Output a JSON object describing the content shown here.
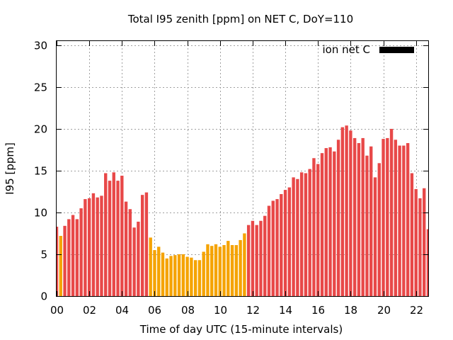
{
  "chart_data": {
    "type": "bar",
    "title": "Total I95 zenith [ppm] on NET C, DoY=110",
    "xlabel": "Time of day UTC (15-minute intervals)",
    "ylabel": "I95 [ppm]",
    "ylim": [
      0,
      30.5
    ],
    "xlim": [
      0,
      22.75
    ],
    "yticks": [
      0,
      5,
      10,
      15,
      20,
      25,
      30
    ],
    "xticks": [
      0,
      2,
      4,
      6,
      8,
      10,
      12,
      14,
      16,
      18,
      20,
      22
    ],
    "xtick_labels": [
      "00",
      "02",
      "04",
      "06",
      "08",
      "10",
      "12",
      "14",
      "16",
      "18",
      "20",
      "22"
    ],
    "grid": true,
    "legend": {
      "position": "top-right",
      "label": "ion net C",
      "swatch_color": "#000000"
    },
    "bar_width_hours": 0.19,
    "series": [
      {
        "name": "ion net C",
        "color_high": "#e84848",
        "color_low": "#f5a300",
        "x": [
          0.0,
          0.25,
          0.5,
          0.75,
          1.0,
          1.25,
          1.5,
          1.75,
          2.0,
          2.25,
          2.5,
          2.75,
          3.0,
          3.25,
          3.5,
          3.75,
          4.0,
          4.25,
          4.5,
          4.75,
          5.0,
          5.25,
          5.5,
          5.75,
          6.0,
          6.25,
          6.5,
          6.75,
          7.0,
          7.25,
          7.5,
          7.75,
          8.0,
          8.25,
          8.5,
          8.75,
          9.0,
          9.25,
          9.5,
          9.75,
          10.0,
          10.25,
          10.5,
          10.75,
          11.0,
          11.25,
          11.5,
          11.75,
          12.0,
          12.25,
          12.5,
          12.75,
          13.0,
          13.25,
          13.5,
          13.75,
          14.0,
          14.25,
          14.5,
          14.75,
          15.0,
          15.25,
          15.5,
          15.75,
          16.0,
          16.25,
          16.5,
          16.75,
          17.0,
          17.25,
          17.5,
          17.75,
          18.0,
          18.25,
          18.5,
          18.75,
          19.0,
          19.25,
          19.5,
          19.75,
          20.0,
          20.25,
          20.5,
          20.75,
          21.0,
          21.25,
          21.5,
          21.75,
          22.0,
          22.25,
          22.5,
          22.75
        ],
        "values": [
          8.3,
          7.2,
          8.4,
          9.2,
          9.7,
          9.2,
          10.5,
          11.6,
          11.7,
          12.3,
          11.8,
          12.0,
          14.7,
          13.8,
          14.8,
          13.8,
          14.4,
          11.3,
          10.4,
          8.2,
          8.9,
          12.1,
          12.4,
          7.0,
          5.5,
          5.9,
          5.2,
          4.5,
          4.8,
          4.9,
          5.0,
          5.0,
          4.7,
          4.6,
          4.3,
          4.3,
          5.3,
          6.2,
          6.0,
          6.2,
          5.9,
          6.1,
          6.6,
          6.1,
          6.1,
          6.7,
          7.5,
          8.5,
          9.0,
          8.5,
          9.0,
          9.6,
          10.8,
          11.4,
          11.6,
          12.2,
          12.7,
          13.0,
          14.2,
          14.0,
          14.8,
          14.7,
          15.2,
          16.5,
          15.8,
          17.1,
          17.7,
          17.8,
          17.3,
          18.7,
          20.2,
          20.4,
          19.8,
          18.9,
          18.3,
          18.9,
          16.8,
          17.9,
          14.2,
          15.9,
          18.8,
          18.9,
          20.0,
          18.7,
          18.0,
          18.0,
          18.3,
          14.7,
          12.8,
          11.7,
          12.9,
          8.0
        ],
        "low_flags": [
          0,
          1,
          0,
          0,
          0,
          0,
          0,
          0,
          0,
          0,
          0,
          0,
          0,
          0,
          0,
          0,
          0,
          0,
          0,
          0,
          0,
          0,
          0,
          1,
          1,
          1,
          1,
          1,
          1,
          1,
          1,
          1,
          1,
          1,
          1,
          1,
          1,
          1,
          1,
          1,
          1,
          1,
          1,
          1,
          1,
          1,
          1,
          0,
          0,
          0,
          0,
          0,
          0,
          0,
          0,
          0,
          0,
          0,
          0,
          0,
          0,
          0,
          0,
          0,
          0,
          0,
          0,
          0,
          0,
          0,
          0,
          0,
          0,
          0,
          0,
          0,
          0,
          0,
          0,
          0,
          0,
          0,
          0,
          0,
          0,
          0,
          0,
          0,
          0,
          0,
          0,
          0
        ]
      }
    ]
  }
}
